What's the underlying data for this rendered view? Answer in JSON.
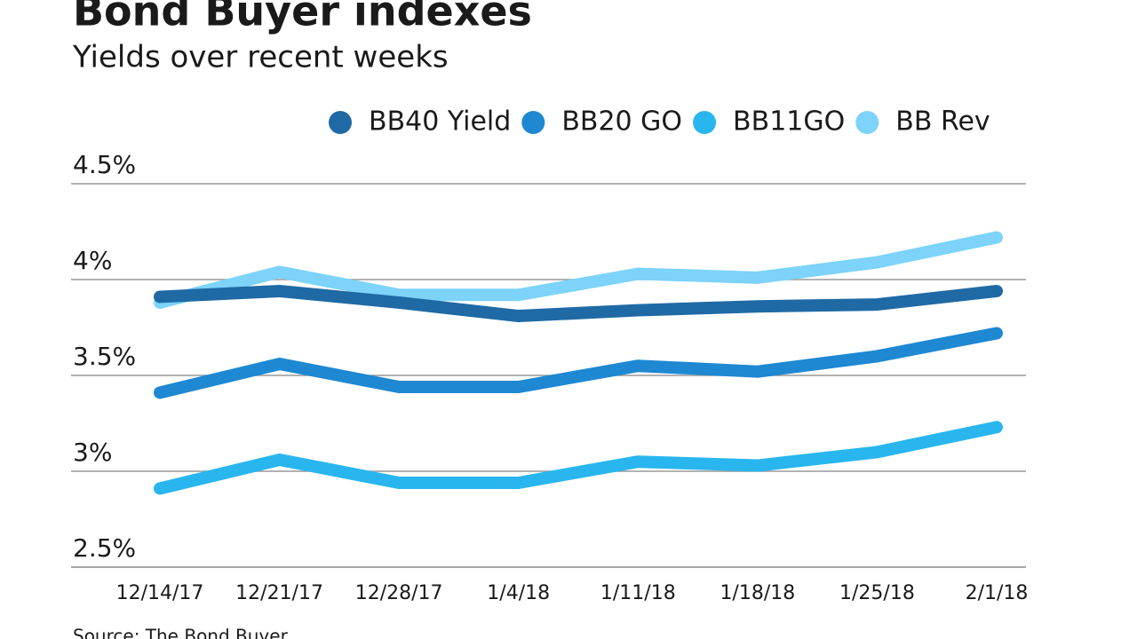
{
  "chart_data": {
    "type": "line",
    "title": "Bond Buyer indexes",
    "subtitle": "Yields over recent weeks",
    "source": "Source: The Bond Buyer",
    "categories": [
      "12/14/17",
      "12/21/17",
      "12/28/17",
      "1/4/18",
      "1/11/18",
      "1/18/18",
      "1/25/18",
      "2/1/18"
    ],
    "series": [
      {
        "name": "BB40 Yield",
        "color": "#1f6aa5",
        "values": [
          3.91,
          3.94,
          3.88,
          3.81,
          3.84,
          3.86,
          3.87,
          3.94
        ]
      },
      {
        "name": "BB20 GO",
        "color": "#1e88d2",
        "values": [
          3.41,
          3.56,
          3.44,
          3.44,
          3.55,
          3.52,
          3.6,
          3.72
        ]
      },
      {
        "name": "BB11GO",
        "color": "#29b6ee",
        "values": [
          2.91,
          3.06,
          2.94,
          2.94,
          3.05,
          3.03,
          3.1,
          3.23
        ]
      },
      {
        "name": "BB Rev",
        "color": "#7dd3f9",
        "values": [
          3.88,
          4.04,
          3.92,
          3.92,
          4.03,
          4.01,
          4.09,
          4.22
        ]
      }
    ],
    "ylim": [
      2.5,
      4.5
    ],
    "yticks": [
      {
        "value": 2.5,
        "label": "2.5%"
      },
      {
        "value": 3,
        "label": "3%"
      },
      {
        "value": 3.5,
        "label": "3.5%"
      },
      {
        "value": 4,
        "label": "4%"
      },
      {
        "value": 4.5,
        "label": "4.5%"
      }
    ],
    "grid": true
  }
}
